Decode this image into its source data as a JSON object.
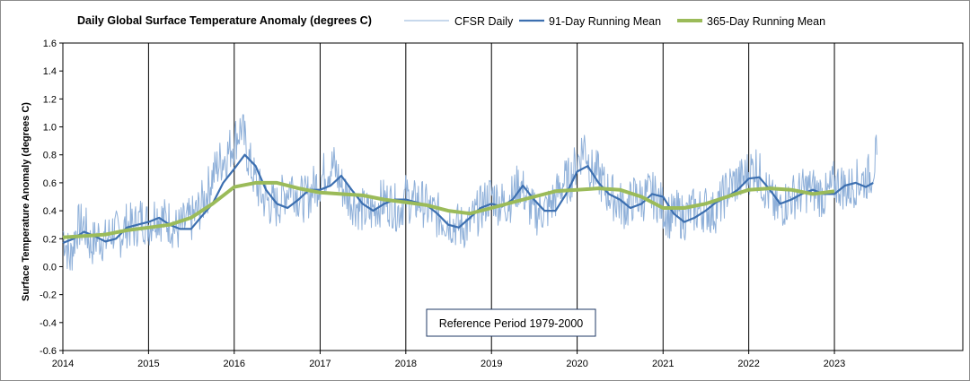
{
  "chart_data": {
    "type": "line",
    "title": "Daily Global Surface Temperature Anomaly (degrees C)",
    "xlabel": "",
    "ylabel": "Surface Temperature Anomaly (degrees C)",
    "xlim": [
      "2014-01-01",
      "2024-07-01"
    ],
    "ylim": [
      -0.6,
      1.6
    ],
    "y_ticks": [
      -0.6,
      -0.4,
      -0.2,
      0.0,
      0.2,
      0.4,
      0.6,
      0.8,
      1.0,
      1.2,
      1.4,
      1.6
    ],
    "y_tick_labels": [
      "-0.6",
      "-0.4",
      "-0.2",
      "0.0",
      "0.2",
      "0.4",
      "0.6",
      "0.8",
      "1.0",
      "1.2",
      "1.4",
      "1.6"
    ],
    "x_ticks": [
      "2014-01-01",
      "2015-01-01",
      "2016-01-01",
      "2017-01-01",
      "2018-01-01",
      "2019-01-01",
      "2020-01-01",
      "2021-01-01",
      "2022-01-01",
      "2023-01-01"
    ],
    "x_tick_labels": [
      "2014",
      "2015",
      "2016",
      "2017",
      "2018",
      "2019",
      "2020",
      "2021",
      "2022",
      "2023"
    ],
    "vertical_year_lines": true,
    "grid": false,
    "legend_position": "top",
    "annotation": "Reference Period 1979-2000",
    "series": [
      {
        "name": "CFSR Daily",
        "color": "#8fb0d9",
        "style": "thin",
        "x": [
          "2014-01-01",
          "2014-02-01",
          "2014-03-01",
          "2014-04-01",
          "2014-05-01",
          "2014-06-01",
          "2014-07-01",
          "2014-08-01",
          "2014-09-01",
          "2014-10-01",
          "2014-11-01",
          "2014-12-01",
          "2015-01-01",
          "2015-02-01",
          "2015-03-01",
          "2015-04-01",
          "2015-05-01",
          "2015-06-01",
          "2015-07-01",
          "2015-08-01",
          "2015-09-01",
          "2015-10-01",
          "2015-11-01",
          "2015-12-01",
          "2016-01-01",
          "2016-02-01",
          "2016-03-01",
          "2016-04-01",
          "2016-05-01",
          "2016-06-01",
          "2016-07-01",
          "2016-08-01",
          "2016-09-01",
          "2016-10-01",
          "2016-11-01",
          "2016-12-01",
          "2017-01-01",
          "2017-02-01",
          "2017-03-01",
          "2017-04-01",
          "2017-05-01",
          "2017-06-01",
          "2017-07-01",
          "2017-08-01",
          "2017-09-01",
          "2017-10-01",
          "2017-11-01",
          "2017-12-01",
          "2018-01-01",
          "2018-02-01",
          "2018-03-01",
          "2018-04-01",
          "2018-05-01",
          "2018-06-01",
          "2018-07-01",
          "2018-08-01",
          "2018-09-01",
          "2018-10-01",
          "2018-11-01",
          "2018-12-01",
          "2019-01-01",
          "2019-02-01",
          "2019-03-01",
          "2019-04-01",
          "2019-05-01",
          "2019-06-01",
          "2019-07-01",
          "2019-08-01",
          "2019-09-01",
          "2019-10-01",
          "2019-11-01",
          "2019-12-01",
          "2020-01-01",
          "2020-02-01",
          "2020-03-01",
          "2020-04-01",
          "2020-05-01",
          "2020-06-01",
          "2020-07-01",
          "2020-08-01",
          "2020-09-01",
          "2020-10-01",
          "2020-11-01",
          "2020-12-01",
          "2021-01-01",
          "2021-02-01",
          "2021-03-01",
          "2021-04-01",
          "2021-05-01",
          "2021-06-01",
          "2021-07-01",
          "2021-08-01",
          "2021-09-01",
          "2021-10-01",
          "2021-11-01",
          "2021-12-01",
          "2022-01-01",
          "2022-02-01",
          "2022-03-01",
          "2022-04-01",
          "2022-05-01",
          "2022-06-01",
          "2022-07-01",
          "2022-08-01",
          "2022-09-01",
          "2022-10-01",
          "2022-11-01",
          "2022-12-01",
          "2023-01-01",
          "2023-02-01",
          "2023-03-01",
          "2023-04-01",
          "2023-05-01",
          "2023-06-01",
          "2023-07-01"
        ],
        "values": [
          0.25,
          0.05,
          0.28,
          0.3,
          0.15,
          0.22,
          0.18,
          0.26,
          0.22,
          0.3,
          0.28,
          0.35,
          0.3,
          0.38,
          0.34,
          0.32,
          0.26,
          0.3,
          0.33,
          0.4,
          0.5,
          0.65,
          0.75,
          0.8,
          0.9,
          1.0,
          0.78,
          0.6,
          0.5,
          0.45,
          0.43,
          0.52,
          0.6,
          0.5,
          0.48,
          0.56,
          0.62,
          0.7,
          0.72,
          0.58,
          0.5,
          0.45,
          0.4,
          0.38,
          0.44,
          0.47,
          0.45,
          0.4,
          0.5,
          0.45,
          0.48,
          0.42,
          0.38,
          0.35,
          0.33,
          0.3,
          0.28,
          0.3,
          0.38,
          0.45,
          0.52,
          0.46,
          0.45,
          0.5,
          0.6,
          0.48,
          0.38,
          0.4,
          0.42,
          0.5,
          0.6,
          0.62,
          0.75,
          0.88,
          0.68,
          0.66,
          0.55,
          0.5,
          0.45,
          0.42,
          0.5,
          0.48,
          0.52,
          0.5,
          0.42,
          0.35,
          0.38,
          0.35,
          0.4,
          0.4,
          0.42,
          0.38,
          0.45,
          0.55,
          0.6,
          0.62,
          0.68,
          0.72,
          0.6,
          0.5,
          0.4,
          0.45,
          0.5,
          0.52,
          0.55,
          0.55,
          0.52,
          0.5,
          0.6,
          0.58,
          0.55,
          0.6,
          0.62,
          0.65,
          0.8
        ]
      },
      {
        "name": "91-Day Running Mean",
        "color": "#3c6fb0",
        "style": "medium",
        "x": [
          "2014-01-01",
          "2014-02-15",
          "2014-04-01",
          "2014-05-15",
          "2014-07-01",
          "2014-08-15",
          "2014-10-01",
          "2014-11-15",
          "2015-01-01",
          "2015-02-15",
          "2015-04-01",
          "2015-05-15",
          "2015-07-01",
          "2015-08-15",
          "2015-10-01",
          "2015-11-15",
          "2016-01-01",
          "2016-02-15",
          "2016-04-01",
          "2016-05-15",
          "2016-07-01",
          "2016-08-15",
          "2016-10-01",
          "2016-11-15",
          "2017-01-01",
          "2017-02-15",
          "2017-04-01",
          "2017-05-15",
          "2017-07-01",
          "2017-08-15",
          "2017-10-01",
          "2017-11-15",
          "2018-01-01",
          "2018-02-15",
          "2018-04-01",
          "2018-05-15",
          "2018-07-01",
          "2018-08-15",
          "2018-10-01",
          "2018-11-15",
          "2019-01-01",
          "2019-02-15",
          "2019-04-01",
          "2019-05-15",
          "2019-07-01",
          "2019-08-15",
          "2019-10-01",
          "2019-11-15",
          "2020-01-01",
          "2020-02-15",
          "2020-04-01",
          "2020-05-15",
          "2020-07-01",
          "2020-08-15",
          "2020-10-01",
          "2020-11-15",
          "2021-01-01",
          "2021-02-15",
          "2021-04-01",
          "2021-05-15",
          "2021-07-01",
          "2021-08-15",
          "2021-10-01",
          "2021-11-15",
          "2022-01-01",
          "2022-02-15",
          "2022-04-01",
          "2022-05-15",
          "2022-07-01",
          "2022-08-15",
          "2022-10-01",
          "2022-11-15",
          "2023-01-01",
          "2023-02-15",
          "2023-04-01",
          "2023-05-15",
          "2023-06-15"
        ],
        "values": [
          0.17,
          0.2,
          0.25,
          0.22,
          0.18,
          0.2,
          0.28,
          0.3,
          0.32,
          0.35,
          0.3,
          0.27,
          0.27,
          0.36,
          0.45,
          0.6,
          0.7,
          0.8,
          0.72,
          0.55,
          0.45,
          0.42,
          0.48,
          0.55,
          0.55,
          0.58,
          0.65,
          0.55,
          0.45,
          0.4,
          0.45,
          0.48,
          0.48,
          0.46,
          0.44,
          0.38,
          0.3,
          0.28,
          0.35,
          0.42,
          0.45,
          0.43,
          0.48,
          0.58,
          0.48,
          0.4,
          0.4,
          0.52,
          0.68,
          0.72,
          0.6,
          0.52,
          0.48,
          0.42,
          0.45,
          0.52,
          0.5,
          0.38,
          0.32,
          0.35,
          0.4,
          0.46,
          0.5,
          0.55,
          0.63,
          0.64,
          0.55,
          0.45,
          0.48,
          0.52,
          0.55,
          0.52,
          0.52,
          0.58,
          0.6,
          0.57,
          0.6
        ]
      },
      {
        "name": "365-Day Running Mean",
        "color": "#9bbb59",
        "style": "thick",
        "x": [
          "2014-01-01",
          "2014-04-01",
          "2014-07-01",
          "2014-10-01",
          "2015-01-01",
          "2015-04-01",
          "2015-07-01",
          "2015-10-01",
          "2016-01-01",
          "2016-04-01",
          "2016-07-01",
          "2016-10-01",
          "2017-01-01",
          "2017-04-01",
          "2017-07-01",
          "2017-10-01",
          "2018-01-01",
          "2018-04-01",
          "2018-07-01",
          "2018-10-01",
          "2019-01-01",
          "2019-04-01",
          "2019-07-01",
          "2019-10-01",
          "2020-01-01",
          "2020-04-01",
          "2020-07-01",
          "2020-10-01",
          "2021-01-01",
          "2021-04-01",
          "2021-07-01",
          "2021-10-01",
          "2022-01-01",
          "2022-04-01",
          "2022-07-01",
          "2022-10-01",
          "2023-01-01"
        ],
        "values": [
          0.21,
          0.22,
          0.23,
          0.26,
          0.28,
          0.3,
          0.35,
          0.45,
          0.57,
          0.6,
          0.6,
          0.56,
          0.53,
          0.52,
          0.51,
          0.48,
          0.46,
          0.44,
          0.4,
          0.38,
          0.42,
          0.46,
          0.5,
          0.54,
          0.55,
          0.56,
          0.55,
          0.5,
          0.42,
          0.42,
          0.45,
          0.5,
          0.55,
          0.56,
          0.55,
          0.52,
          0.54
        ]
      }
    ]
  }
}
